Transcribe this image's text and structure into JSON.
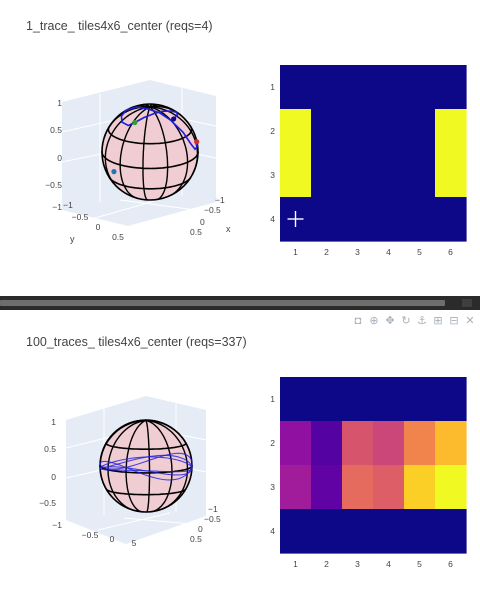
{
  "accent_colors": {
    "heat_low": "#0d0887",
    "heat_high": "#f0f921",
    "sphere_fill": "#f2c8cc",
    "trace_line": "#1f1fdc"
  },
  "modebar": {
    "icons": [
      "camera-icon",
      "zoom-icon",
      "pan-icon",
      "rotate-icon",
      "orbit-icon",
      "zoom-in-icon",
      "zoom-out-icon",
      "reset-icon"
    ]
  },
  "panels": [
    {
      "title": "1_trace_ tiles4x6_center (reqs=4)"
    },
    {
      "title": "100_traces_ tiles4x6_center (reqs=337)"
    }
  ],
  "chart_data": [
    {
      "type": "scatter3d",
      "title": "1_trace_ tiles4x6_center (reqs=4)",
      "axes": {
        "x_label": "x",
        "y_label": "y",
        "z_label": ""
      },
      "x_ticks": [
        "−1",
        "−0.5",
        "0",
        "0.5"
      ],
      "y_ticks": [
        "−1",
        "−0.5",
        "0",
        "0.5"
      ],
      "z_ticks": [
        "1",
        "0.5",
        "0",
        "−0.5",
        "−1"
      ],
      "view": {
        "azimuth": 0.9,
        "elevation": 0.35
      },
      "sphere_radius": 1,
      "trace": [
        [
          0.1,
          -0.55,
          0.83
        ],
        [
          0.35,
          -0.45,
          0.82
        ],
        [
          0.58,
          -0.25,
          0.77
        ],
        [
          0.7,
          0.0,
          0.71
        ],
        [
          0.72,
          0.25,
          0.64
        ],
        [
          0.7,
          0.45,
          0.55
        ],
        [
          0.62,
          0.65,
          0.44
        ],
        [
          0.5,
          0.8,
          0.33
        ],
        [
          0.38,
          0.88,
          0.28
        ],
        [
          0.2,
          0.9,
          0.4
        ],
        [
          0.05,
          0.8,
          0.6
        ],
        [
          -0.05,
          0.6,
          0.8
        ],
        [
          -0.08,
          0.3,
          0.95
        ],
        [
          -0.1,
          0.0,
          0.99
        ],
        [
          -0.05,
          -0.3,
          0.95
        ],
        [
          0.0,
          -0.55,
          0.83
        ],
        [
          0.1,
          -0.8,
          0.59
        ],
        [
          0.2,
          -0.92,
          0.34
        ],
        [
          0.35,
          -0.92,
          0.17
        ],
        [
          0.5,
          -0.85,
          0.16
        ],
        [
          0.62,
          -0.75,
          0.22
        ]
      ],
      "markers": [
        {
          "xyz": [
            0.1,
            -0.55,
            0.83
          ],
          "color": "#0d0887"
        },
        {
          "xyz": [
            -0.2,
            0.8,
            -0.56
          ],
          "color": "#1f77b4"
        },
        {
          "xyz": [
            0.62,
            -0.75,
            0.22
          ],
          "color": "#d62728"
        },
        {
          "xyz": [
            0.5,
            0.8,
            0.33
          ],
          "color": "#2ca02c"
        }
      ]
    },
    {
      "type": "heatmap",
      "title": "1_trace_ tiles4x6_center (reqs=4)",
      "rows": 4,
      "cols": 6,
      "x_ticks": [
        1,
        2,
        3,
        4,
        5,
        6
      ],
      "y_ticks": [
        1,
        2,
        3,
        4
      ],
      "z": [
        [
          0,
          0,
          0,
          0,
          0,
          0
        ],
        [
          1,
          0,
          0,
          0,
          0,
          1
        ],
        [
          1,
          0,
          0,
          0,
          0,
          1
        ],
        [
          0,
          0,
          0,
          0,
          0,
          0
        ]
      ],
      "colorscale": [
        "#0d0887",
        "#f0f921"
      ],
      "cursor_marker": {
        "row": 4,
        "col": 1
      }
    },
    {
      "type": "scatter3d",
      "title": "100_traces_ tiles4x6_center (reqs=337)",
      "axes": {
        "x_label": "",
        "y_label": "",
        "z_label": ""
      },
      "x_ticks": [
        "−1",
        "−0.5",
        "0",
        "0.5"
      ],
      "y_ticks": [
        "−0.5",
        "0",
        "5"
      ],
      "z_ticks": [
        "1",
        "0.5",
        "0",
        "−0.5",
        "−1"
      ],
      "view": {
        "azimuth": 0.6,
        "elevation": 0.15
      },
      "sphere_radius": 1,
      "rings": [
        {
          "tilt": 0.05,
          "phase": 0.0
        },
        {
          "tilt": -0.1,
          "phase": 1.2
        },
        {
          "tilt": 0.18,
          "phase": 2.4
        }
      ]
    },
    {
      "type": "heatmap",
      "title": "100_traces_ tiles4x6_center (reqs=337)",
      "rows": 4,
      "cols": 6,
      "x_ticks": [
        1,
        2,
        3,
        4,
        5,
        6
      ],
      "y_ticks": [
        1,
        2,
        3,
        4
      ],
      "z": [
        [
          0.0,
          0.0,
          0.0,
          0.0,
          0.0,
          0.0
        ],
        [
          0.3,
          0.15,
          0.55,
          0.5,
          0.7,
          0.85
        ],
        [
          0.35,
          0.18,
          0.62,
          0.58,
          0.9,
          1.0
        ],
        [
          0.0,
          0.0,
          0.0,
          0.0,
          0.0,
          0.0
        ]
      ],
      "colorscale": [
        "#0d0887",
        "#46039f",
        "#7201a8",
        "#9c179e",
        "#bd3786",
        "#d8576b",
        "#ed7953",
        "#fb9f3a",
        "#fdca26",
        "#f0f921"
      ]
    }
  ]
}
